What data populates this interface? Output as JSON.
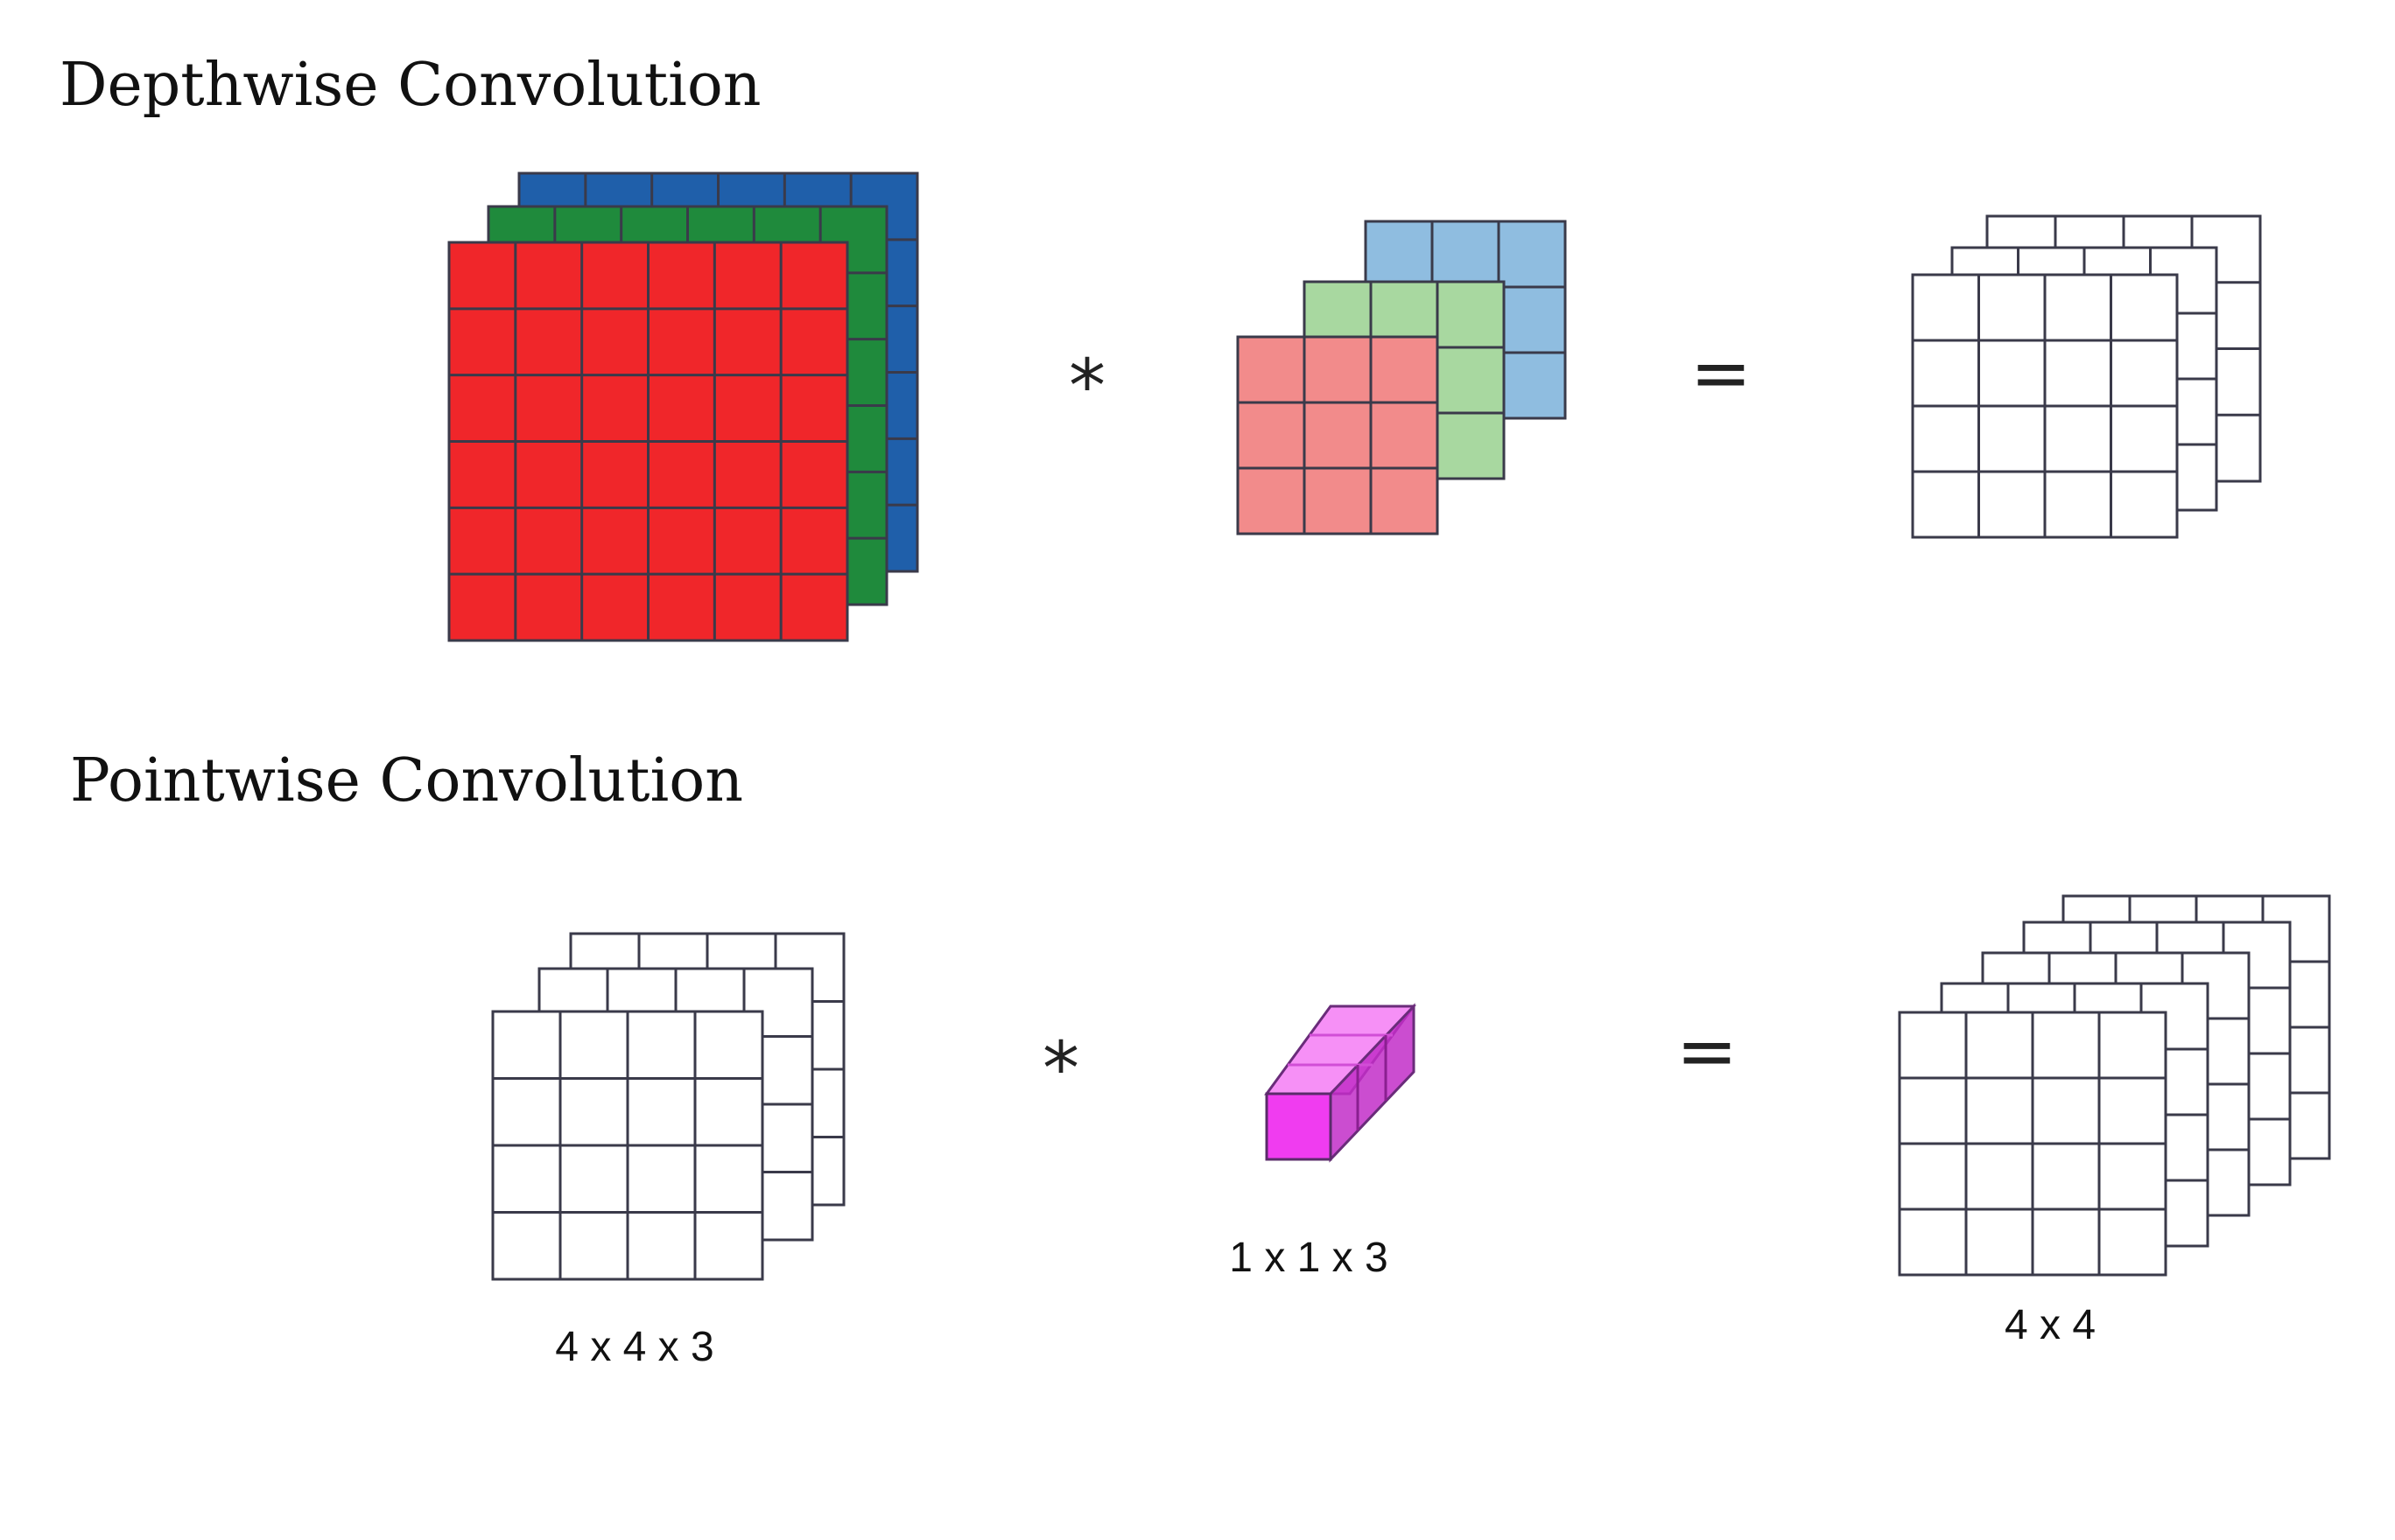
{
  "depthwise": {
    "title": "Depthwise Convolution",
    "input_grid": 6,
    "input_colors": [
      "#1f5faa",
      "#1f8a3c",
      "#f0262a"
    ],
    "kernel_grid": 3,
    "kernel_colors": [
      "#8fbde0",
      "#a8d8a0",
      "#f28b8b"
    ],
    "output_grid": 4,
    "operator_star": "*",
    "operator_equals": "="
  },
  "pointwise": {
    "title": "Pointwise Convolution",
    "input_grid": 4,
    "input_label": "4 x 4 x 3",
    "kernel_label": "1 x 1 x 3",
    "kernel_color": "#f03cf0",
    "output_grid": 4,
    "output_label": "4 x 4",
    "operator_star": "*",
    "operator_equals": "="
  }
}
